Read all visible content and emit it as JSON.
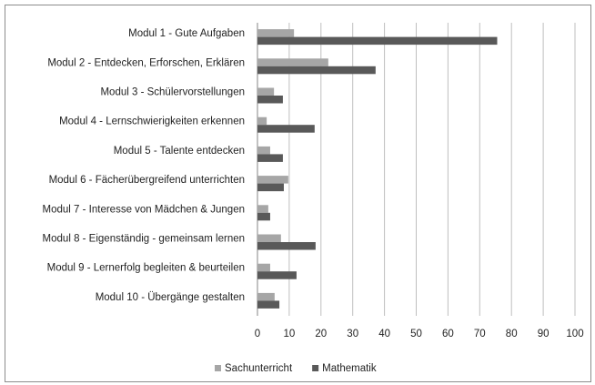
{
  "chart_data": {
    "type": "hbar",
    "categories": [
      "Modul 1 - Gute Aufgaben",
      "Modul 2 - Entdecken, Erforschen, Erklären",
      "Modul 3 - Schülervorstellungen",
      "Modul 4 - Lernschwierigkeiten erkennen",
      "Modul 5 - Talente entdecken",
      "Modul 6 - Fächerübergreifend unterrichten",
      "Modul 7 - Interesse von Mädchen & Jungen",
      "Modul 8 - Eigenständig - gemeinsam lernen",
      "Modul 9 - Lernerfolg begleiten & beurteilen",
      "Modul 10 - Übergänge gestalten"
    ],
    "series": [
      {
        "name": "Sachunterricht",
        "color": "#a6a6a6",
        "values": [
          11.5,
          22.3,
          5.2,
          2.9,
          4,
          9.7,
          3.4,
          7.4,
          4,
          5.4
        ]
      },
      {
        "name": "Mathematik",
        "color": "#595959",
        "values": [
          75.5,
          37.2,
          8,
          18,
          8,
          8.3,
          4,
          18.3,
          12.3,
          6.9
        ]
      }
    ],
    "xlim": [
      0,
      100
    ],
    "xticks": [
      0,
      10,
      20,
      30,
      40,
      50,
      60,
      70,
      80,
      90,
      100
    ],
    "grid": true,
    "legend": "bottom"
  }
}
